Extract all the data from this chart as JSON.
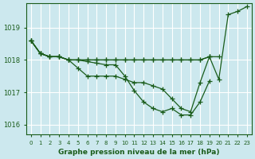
{
  "title": "Graphe pression niveau de la mer (hPa)",
  "bg_color": "#cce8ee",
  "grid_color": "#ffffff",
  "line_color": "#1a5c1a",
  "ylim": [
    1015.7,
    1019.75
  ],
  "xlim": [
    -0.5,
    23.5
  ],
  "yticks": [
    1016,
    1017,
    1018,
    1019
  ],
  "xticks": [
    0,
    1,
    2,
    3,
    4,
    5,
    6,
    7,
    8,
    9,
    10,
    11,
    12,
    13,
    14,
    15,
    16,
    17,
    18,
    19,
    20,
    21,
    22,
    23
  ],
  "series": [
    [
      1018.6,
      1018.2,
      1018.1,
      1018.1,
      1018.0,
      1017.75,
      1017.5,
      1017.5,
      1017.5,
      1017.5,
      1017.4,
      1017.3,
      1017.3,
      1017.2,
      1017.1,
      1016.8,
      1016.5,
      1016.4,
      1017.3,
      1018.1,
      1017.4,
      1019.4,
      1019.5,
      1019.65
    ],
    [
      1018.6,
      1018.2,
      1018.1,
      1018.1,
      1018.0,
      1018.0,
      1018.0,
      1018.0,
      1018.0,
      1018.0,
      1018.0,
      1018.0,
      1018.0,
      1018.0,
      1018.0,
      1018.0,
      1018.0,
      1018.0,
      1018.0,
      1018.1,
      null,
      null,
      null,
      null
    ],
    [
      1018.6,
      1018.2,
      1018.1,
      1018.1,
      1018.0,
      1018.0,
      1018.0,
      1018.0,
      1018.0,
      1018.0,
      1018.0,
      1018.0,
      1018.0,
      1018.0,
      1018.0,
      1018.0,
      1018.0,
      1018.0,
      1018.0,
      1018.1,
      1018.1,
      null,
      null,
      null
    ],
    [
      1018.6,
      1018.2,
      1018.1,
      1018.1,
      1018.0,
      1018.0,
      1017.95,
      1017.9,
      1017.85,
      1017.85,
      1017.5,
      1017.05,
      1016.7,
      1016.5,
      1016.4,
      1016.5,
      1016.3,
      1016.3,
      1016.7,
      1017.35,
      null,
      null,
      null,
      null
    ]
  ]
}
